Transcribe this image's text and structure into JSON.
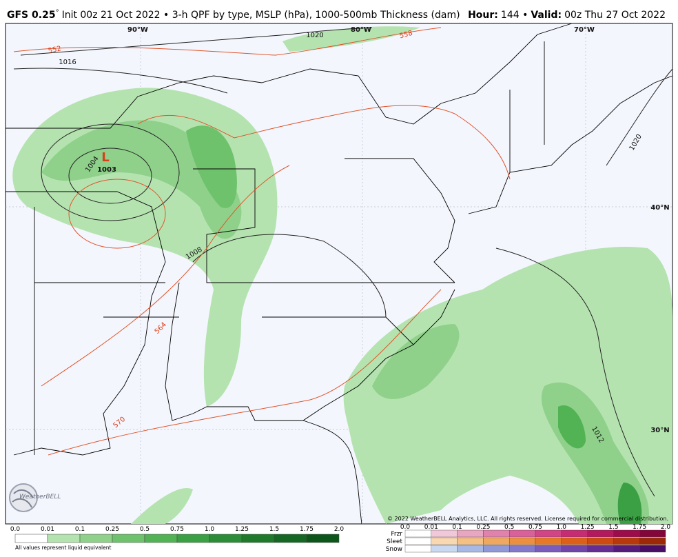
{
  "header": {
    "model": "GFS 0.25",
    "degree": "°",
    "title": "Init 00z 21 Oct 2022 • 3-h QPF by type, MSLP (hPa), 1000-500mb Thickness (dam)",
    "hour_label": "Hour:",
    "hour": "144 •",
    "valid_label": "Valid:",
    "valid": "00z Thu 27 Oct 2022"
  },
  "map": {
    "labels": [
      "90°W",
      "80°W",
      "70°W",
      "40°N",
      "30°N",
      "1020",
      "1016",
      "552",
      "558",
      "1020",
      "L",
      "1003",
      "1004",
      "1008",
      "564",
      "570",
      "1012"
    ]
  },
  "logo": "WeatherBELL",
  "copyright": "© 2022 WeatherBELL Analytics, LLC. All rights reserved. License required for commercial distribution.",
  "qpf_legend": {
    "ticks": [
      "0.0",
      "0.01",
      "0.1",
      "0.25",
      "0.5",
      "0.75",
      "1.0",
      "1.25",
      "1.5",
      "1.75",
      "2.0"
    ],
    "note": "All values represent liquid equivalent"
  },
  "type_legend": {
    "types": [
      "Frzr",
      "Sleet",
      "Snow"
    ],
    "ticks": [
      "0.0",
      "0.01",
      "0.1",
      "0.25",
      "0.5",
      "0.75",
      "1.0",
      "1.25",
      "1.5",
      "1.75",
      "2.0"
    ]
  }
}
